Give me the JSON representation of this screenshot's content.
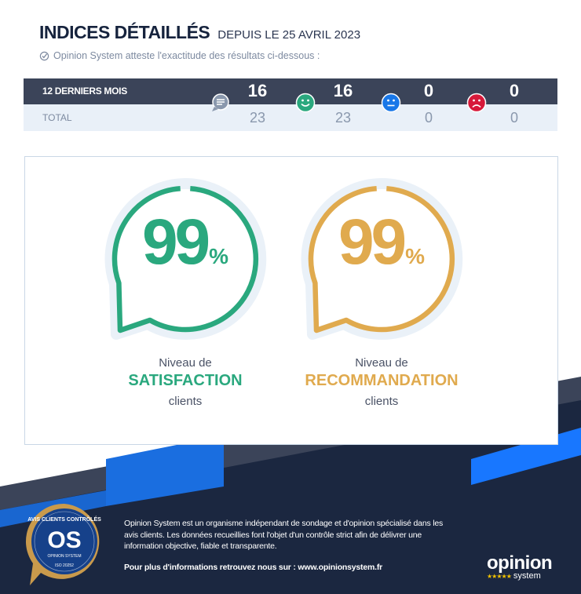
{
  "header": {
    "title": "INDICES DÉTAILLÉS",
    "subtitle": "DEPUIS LE 25 AVRIL 2023",
    "attest": "Opinion System atteste l'exactitude des résultats ci-dessous :"
  },
  "stats": {
    "row1_label": "12 DERNIERS MOIS",
    "row2_label": "TOTAL",
    "columns": [
      {
        "icon": "speech-bubble-icon",
        "color": "#7d8aa0",
        "last12": "16",
        "total": "23"
      },
      {
        "icon": "happy-face-icon",
        "color": "#2aa87e",
        "last12": "16",
        "total": "23"
      },
      {
        "icon": "neutral-face-icon",
        "color": "#1877e8",
        "last12": "0",
        "total": "0"
      },
      {
        "icon": "sad-face-icon",
        "color": "#d7193a",
        "last12": "0",
        "total": "0"
      }
    ]
  },
  "gauges": [
    {
      "value": "99",
      "unit": "%",
      "progress": 0.99,
      "color": "#2aa87e",
      "line1": "Niveau de",
      "line2": "SATISFACTION",
      "line3": "clients"
    },
    {
      "value": "99",
      "unit": "%",
      "progress": 0.99,
      "color": "#e0aa4e",
      "line1": "Niveau de",
      "line2": "RECOMMANDATION",
      "line3": "clients"
    }
  ],
  "footer": {
    "text": "Opinion System est un organisme indépendant de sondage et d'opinion spécialisé dans les avis clients. Les données recueillies font l'objet d'un contrôle strict afin de délivrer une information objective, fiable et transparente.",
    "more": "Pour plus d'informations retrouvez nous sur : www.opinionsystem.fr",
    "badge": {
      "top": "AVIS CLIENTS CONTRÔLÉS",
      "brand": "OPINION SYSTEM",
      "iso": "ISO 20252",
      "mark": "OS"
    },
    "logo": {
      "word": "opinion",
      "sub": "system",
      "stars": "★★★★★"
    }
  }
}
